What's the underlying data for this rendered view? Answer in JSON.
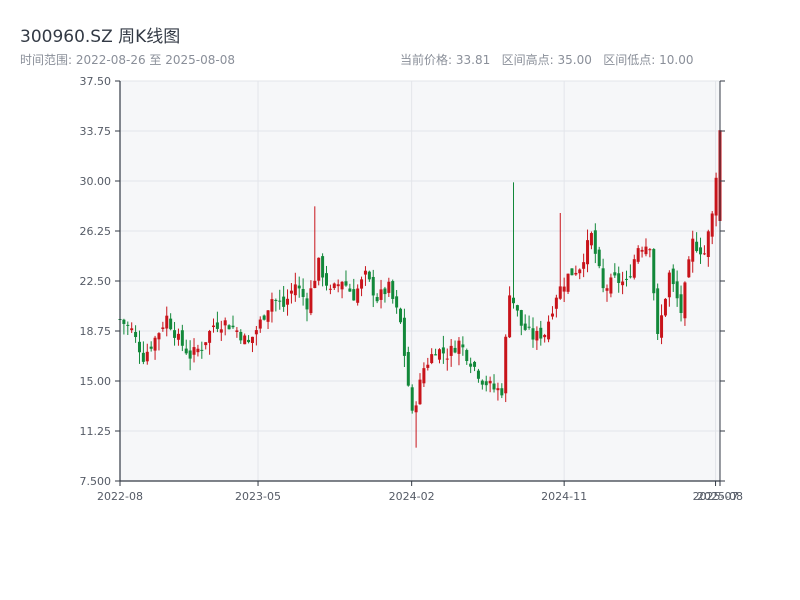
{
  "header": {
    "title": "300960.SZ 周K线图",
    "range_text": "时间范围: 2022-08-26 至 2025-08-08",
    "stats_text": "当前价格: 33.81   区间高点: 35.00   区间低点: 10.00"
  },
  "colors": {
    "up": "#c8141b",
    "down": "#12883a",
    "plot_bg": "#f6f7f9",
    "grid": "#e3e5ea",
    "axis": "#333a45"
  },
  "chart_data": {
    "type": "candlestick",
    "title": "300960.SZ 周K线图",
    "x_range": [
      "2022-08-26",
      "2025-08-08"
    ],
    "ylim": [
      7.5,
      37.5
    ],
    "y_ticks": [
      "37.50",
      "33.75",
      "30.00",
      "26.25",
      "22.50",
      "18.75",
      "15.00",
      "11.25",
      "7.500"
    ],
    "x_ticks": [
      {
        "date": "2022-08-26",
        "label": "2022-08"
      },
      {
        "date": "2023-05-01",
        "label": "2023-05"
      },
      {
        "date": "2024-02-01",
        "label": "2024-02"
      },
      {
        "date": "2024-11-01",
        "label": "2024-11"
      },
      {
        "date": "2025-07-31",
        "label": "2025-07"
      },
      {
        "date": "2025-08-08",
        "label": "2025-08"
      }
    ],
    "grid": true,
    "current_price": 33.81,
    "range_high": 35.0,
    "range_low": 10.0,
    "weekly_close_anchors": [
      [
        "2022-08-26",
        19.6
      ],
      [
        "2022-09-16",
        18.8
      ],
      [
        "2022-10-07",
        16.8
      ],
      [
        "2022-10-28",
        18.2
      ],
      [
        "2022-11-18",
        19.8
      ],
      [
        "2022-12-09",
        18.1
      ],
      [
        "2022-12-30",
        16.9
      ],
      [
        "2023-01-20",
        17.6
      ],
      [
        "2023-02-10",
        19.2
      ],
      [
        "2023-03-03",
        19.4
      ],
      [
        "2023-03-24",
        18.8
      ],
      [
        "2023-04-14",
        17.8
      ],
      [
        "2023-05-05",
        19.4
      ],
      [
        "2023-05-26",
        21.2
      ],
      [
        "2023-06-16",
        20.6
      ],
      [
        "2023-07-07",
        22.3
      ],
      [
        "2023-07-28",
        20.8
      ],
      [
        "2023-08-18",
        23.8
      ],
      [
        "2023-09-08",
        21.6
      ],
      [
        "2023-09-29",
        22.6
      ],
      [
        "2023-10-20",
        21.4
      ],
      [
        "2023-11-10",
        22.9
      ],
      [
        "2023-12-01",
        21.2
      ],
      [
        "2023-12-22",
        22.0
      ],
      [
        "2024-01-12",
        19.3
      ],
      [
        "2024-02-02",
        12.4
      ],
      [
        "2024-02-23",
        16.0
      ],
      [
        "2024-03-15",
        17.4
      ],
      [
        "2024-04-05",
        17.0
      ],
      [
        "2024-04-26",
        17.9
      ],
      [
        "2024-05-17",
        16.5
      ],
      [
        "2024-06-07",
        15.1
      ],
      [
        "2024-06-28",
        14.4
      ],
      [
        "2024-07-12",
        14.3
      ],
      [
        "2024-07-26",
        21.8
      ],
      [
        "2024-08-16",
        19.2
      ],
      [
        "2024-09-06",
        18.3
      ],
      [
        "2024-09-27",
        18.6
      ],
      [
        "2024-10-18",
        21.5
      ],
      [
        "2024-11-08",
        22.9
      ],
      [
        "2024-11-29",
        23.6
      ],
      [
        "2024-12-20",
        25.9
      ],
      [
        "2025-01-10",
        21.8
      ],
      [
        "2025-01-31",
        22.6
      ],
      [
        "2025-02-21",
        22.3
      ],
      [
        "2025-03-14",
        25.1
      ],
      [
        "2025-04-04",
        25.3
      ],
      [
        "2025-04-18",
        18.2
      ],
      [
        "2025-05-09",
        23.0
      ],
      [
        "2025-05-30",
        20.2
      ],
      [
        "2025-06-20",
        25.4
      ],
      [
        "2025-07-11",
        24.6
      ],
      [
        "2025-07-25",
        27.4
      ],
      [
        "2025-08-08",
        33.81
      ]
    ],
    "spike_weeks": [
      {
        "date": "2023-08-11",
        "high": 28.1
      },
      {
        "date": "2024-02-09",
        "low": 10.0
      },
      {
        "date": "2024-08-02",
        "high": 29.9
      },
      {
        "date": "2024-10-25",
        "high": 27.6
      },
      {
        "date": "2025-08-08",
        "high": 35.0
      }
    ]
  }
}
